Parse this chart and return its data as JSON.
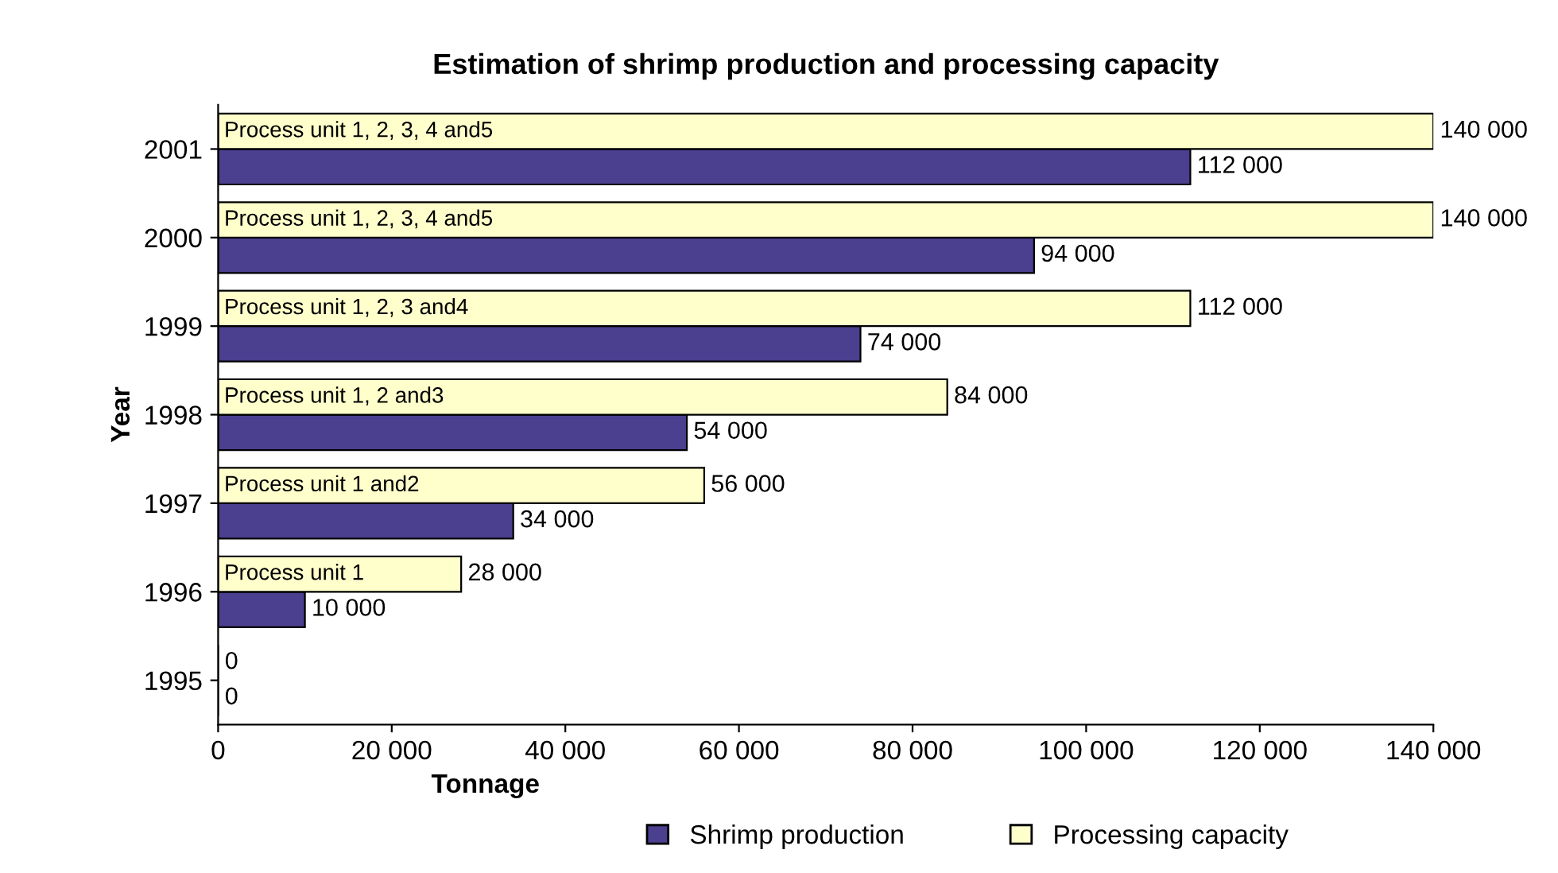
{
  "chart_data": {
    "type": "bar",
    "orientation": "horizontal",
    "title": "Estimation of shrimp production and processing capacity",
    "xlabel": "Tonnage",
    "ylabel": "Year",
    "categories": [
      "2001",
      "2000",
      "1999",
      "1998",
      "1997",
      "1996",
      "1995"
    ],
    "series": [
      {
        "name": "Shrimp production",
        "color": "#4b3f8f",
        "values": [
          112000,
          94000,
          74000,
          54000,
          34000,
          10000,
          0
        ],
        "value_labels": [
          "112 000",
          "94 000",
          "74 000",
          "54 000",
          "34 000",
          "10 000",
          "0"
        ]
      },
      {
        "name": "Processing capacity",
        "color": "#ffffcc",
        "values": [
          140000,
          140000,
          112000,
          84000,
          56000,
          28000,
          0
        ],
        "value_labels": [
          "140 000",
          "140 000",
          "112 000",
          "84 000",
          "56 000",
          "28 000",
          "0"
        ]
      }
    ],
    "annotations": [
      {
        "text": "Process unit 1, 2, 3, 4 and5",
        "y": "2001"
      },
      {
        "text": "Process unit 1, 2, 3, 4 and5",
        "y": "2000"
      },
      {
        "text": "Process unit 1, 2, 3 and4",
        "y": "1999"
      },
      {
        "text": "Process unit 1, 2 and3",
        "y": "1998"
      },
      {
        "text": "Process unit 1 and2",
        "y": "1997"
      },
      {
        "text": "Process unit 1",
        "y": "1996"
      }
    ],
    "xlim": [
      0,
      140000
    ],
    "xticks": [
      0,
      {
        "value": 20000,
        "label": "20 000"
      },
      {
        "value": 40000,
        "label": "40 000"
      },
      {
        "value": 60000,
        "label": "60 000"
      },
      {
        "value": 80000,
        "label": "80 000"
      },
      {
        "value": 100000,
        "label": "100 000"
      },
      {
        "value": 120000,
        "label": "120 000"
      },
      {
        "value": 140000,
        "label": "140 000"
      }
    ],
    "grid": false,
    "legend": "bottom right"
  }
}
